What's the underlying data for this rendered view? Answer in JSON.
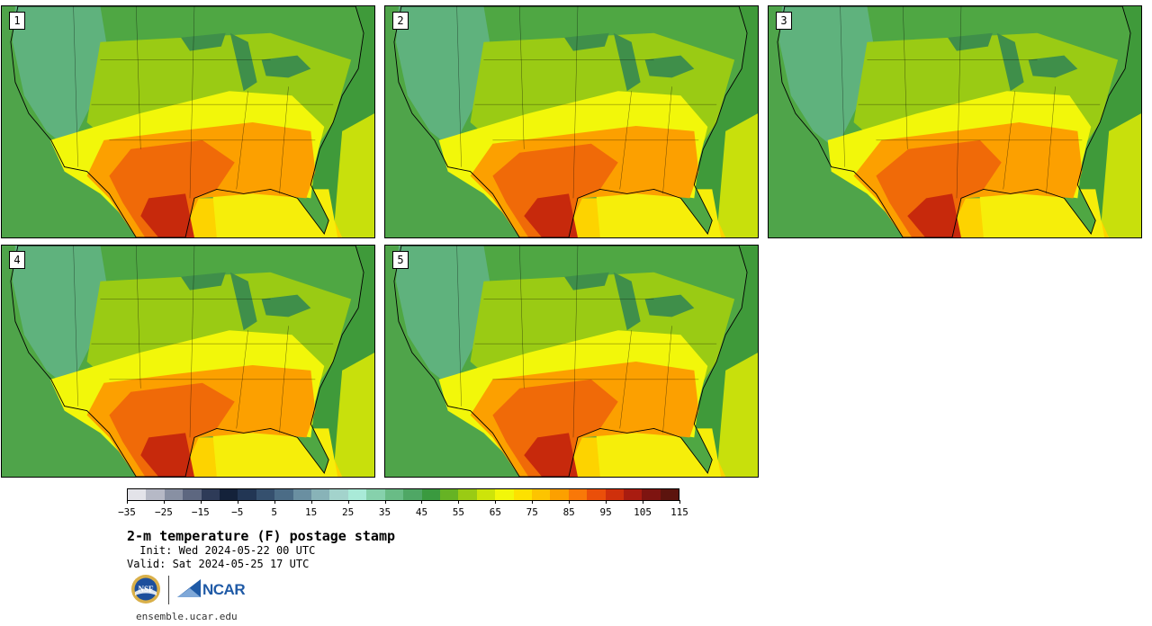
{
  "panels": [
    {
      "label": "1",
      "variant": 0
    },
    {
      "label": "2",
      "variant": 1
    },
    {
      "label": "3",
      "variant": 2
    },
    {
      "label": "4",
      "variant": 3
    },
    {
      "label": "5",
      "variant": 4
    }
  ],
  "colorbar": {
    "colors": [
      "#e3e3e9",
      "#b6b9c6",
      "#8890a3",
      "#5d6780",
      "#2e3b58",
      "#14223a",
      "#223654",
      "#35506e",
      "#4b6c86",
      "#6a8fa1",
      "#88b3b8",
      "#a3d3cc",
      "#a9ead8",
      "#86d1ac",
      "#69bc86",
      "#4fa765",
      "#3a9a3f",
      "#66b324",
      "#9acb14",
      "#cde40a",
      "#f2f70a",
      "#fde100",
      "#fdc400",
      "#fca000",
      "#f97808",
      "#ea4f0a",
      "#cf300c",
      "#a91c10",
      "#7e1410",
      "#5c140e"
    ],
    "tick_labels": [
      "−35",
      "−25",
      "−15",
      "−5",
      "5",
      "15",
      "25",
      "35",
      "45",
      "55",
      "65",
      "75",
      "85",
      "95",
      "105",
      "115"
    ]
  },
  "title": "2-m temperature (F) postage stamp",
  "init": " Init: Wed 2024-05-22 00 UTC",
  "valid": "Valid: Sat 2024-05-25 17 UTC",
  "logos": {
    "nsf": "NSF",
    "ncar": "NCAR"
  },
  "footer": "ensemble.ucar.edu",
  "map_palette": {
    "ocean_atlantic": "#3f9a3a",
    "ocean_pacific": "#4fa44a",
    "gulf": "#fdd300",
    "mountain": "#5fb27d",
    "north": "#4fa743",
    "central": "#9acb14",
    "warm": "#f2f70a",
    "hot": "#fca000",
    "hotter": "#f06a08",
    "hottest": "#c7290c"
  }
}
